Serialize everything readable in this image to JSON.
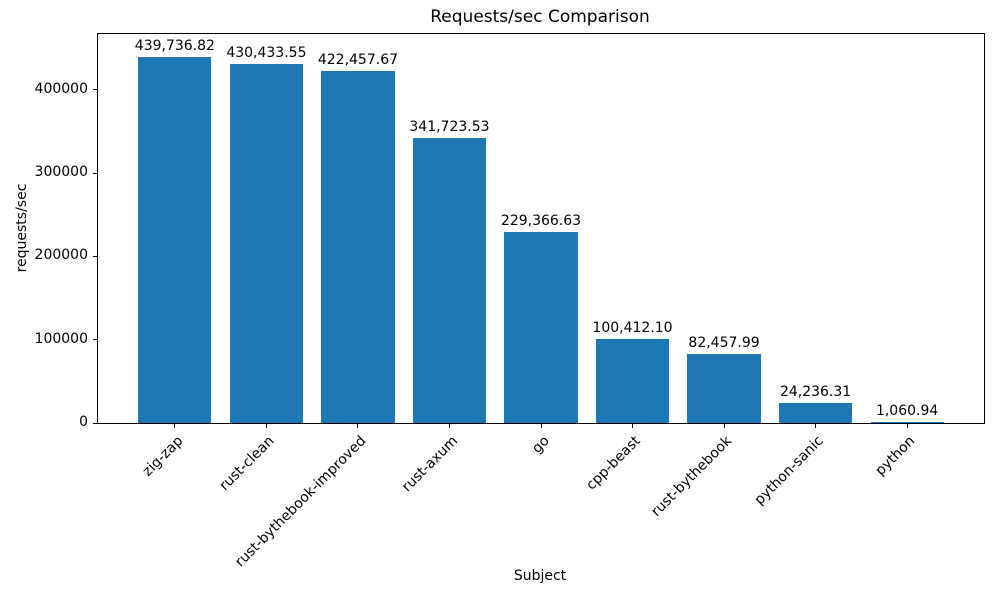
{
  "chart_data": {
    "type": "bar",
    "title": "Requests/sec Comparison",
    "xlabel": "Subject",
    "ylabel": "requests/sec",
    "categories": [
      "zig-zap",
      "rust-clean",
      "rust-bythebook-improved",
      "rust-axum",
      "go",
      "cpp-beast",
      "rust-bythebook",
      "python-sanic",
      "python"
    ],
    "values": [
      439736.82,
      430433.55,
      422457.67,
      341723.53,
      229366.63,
      100412.1,
      82457.99,
      24236.31,
      1060.94
    ],
    "value_labels": [
      "439,736.82",
      "430,433.55",
      "422,457.67",
      "341,723.53",
      "229,366.63",
      "100,412.10",
      "82,457.99",
      "24,236.31",
      "1,060.94"
    ],
    "yticks": [
      0,
      100000,
      200000,
      300000,
      400000
    ],
    "ylim": [
      0,
      467000
    ],
    "bar_color": "#1f77b4",
    "grid": "off",
    "legend": "none"
  }
}
